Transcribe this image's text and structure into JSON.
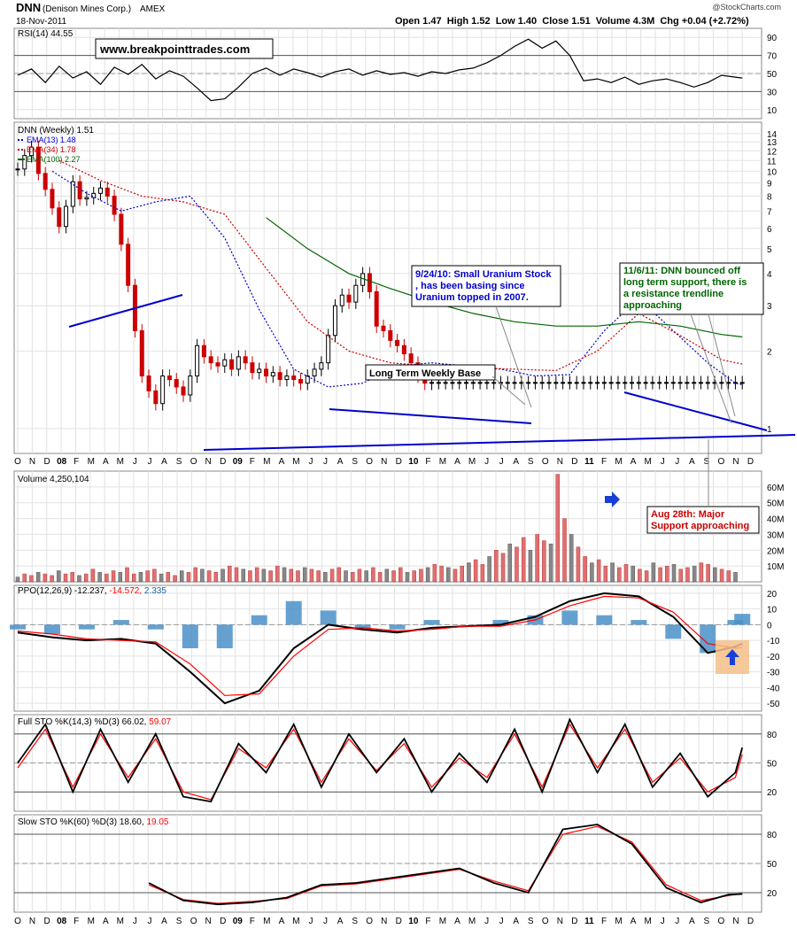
{
  "header": {
    "ticker": "DNN",
    "company": "(Denison Mines Corp.)",
    "exchange": "AMEX",
    "date": "18-Nov-2011",
    "copyright": "@StockCharts.com",
    "ohlc": "Open 1.47  High 1.52  Low 1.40  Close 1.51  Volume 4.3M  Chg +0.04 (+2.72%)",
    "up_color": "#000000",
    "down_color": "#cc0000"
  },
  "chart_data": [
    {
      "type": "line",
      "panel": "rsi",
      "label_prefix": "RSI(14)",
      "label_value": "44.55",
      "ylim": [
        0,
        100
      ],
      "y_ticks": [
        "90",
        "70",
        "50",
        "30",
        "10"
      ],
      "overbought": 70,
      "oversold": 30,
      "watermark": "www.breakpointtrades.com",
      "x": [
        0,
        4,
        8,
        12,
        16,
        20,
        24,
        28,
        32,
        36,
        40,
        44,
        48,
        52,
        56,
        60,
        64,
        68,
        72,
        76,
        80,
        84,
        88,
        92,
        96,
        100,
        104,
        108,
        112,
        116,
        120,
        124,
        128,
        132,
        136,
        140,
        144,
        148,
        152,
        156,
        160,
        164,
        168,
        172,
        176,
        180,
        184,
        188,
        192,
        196,
        200,
        204,
        208,
        210
      ],
      "values": [
        48,
        55,
        40,
        58,
        45,
        52,
        38,
        57,
        49,
        60,
        44,
        53,
        47,
        34,
        20,
        22,
        35,
        50,
        56,
        48,
        55,
        51,
        46,
        52,
        55,
        48,
        53,
        49,
        51,
        47,
        52,
        50,
        54,
        56,
        62,
        70,
        80,
        88,
        78,
        86,
        70,
        42,
        44,
        40,
        46,
        38,
        42,
        44,
        40,
        35,
        40,
        48,
        46,
        45
      ]
    },
    {
      "type": "candlestick",
      "panel": "price",
      "title": "DNN (Weekly) 1.51",
      "ylim": [
        0.8,
        15.5
      ],
      "scale": "log",
      "y_ticks": [
        "14",
        "13",
        "12",
        "11",
        "10",
        "9",
        "8",
        "7",
        "6",
        "5",
        "4",
        "3",
        "2",
        "1"
      ],
      "x_ticks": [
        "O",
        "N",
        "D",
        "08",
        "F",
        "M",
        "A",
        "M",
        "J",
        "J",
        "A",
        "S",
        "O",
        "N",
        "D",
        "09",
        "F",
        "M",
        "A",
        "M",
        "J",
        "J",
        "A",
        "S",
        "O",
        "N",
        "D",
        "10",
        "F",
        "M",
        "A",
        "M",
        "J",
        "J",
        "A",
        "S",
        "O",
        "N",
        "D",
        "11",
        "F",
        "M",
        "A",
        "M",
        "J",
        "J",
        "A",
        "S",
        "O",
        "N",
        "D"
      ],
      "x": [
        0,
        2,
        4,
        6,
        8,
        10,
        12,
        14,
        16,
        18,
        20,
        22,
        24,
        26,
        28,
        30,
        32,
        34,
        36,
        38,
        40,
        42,
        44,
        46,
        48,
        50,
        52,
        54,
        56,
        58,
        60,
        62,
        64,
        66,
        68,
        70,
        72,
        74,
        76,
        78,
        80,
        82,
        84,
        86,
        88,
        90,
        92,
        94,
        96,
        98,
        100,
        102,
        104,
        106,
        108,
        110,
        112,
        114,
        116,
        118,
        120,
        122,
        124,
        126,
        128,
        130,
        132,
        134,
        136,
        138,
        140,
        142,
        144,
        146,
        148,
        150,
        152,
        154,
        156,
        158,
        160,
        162,
        164,
        166,
        168,
        170,
        172,
        174,
        176,
        178,
        180,
        182,
        184,
        186,
        188,
        190,
        192,
        194,
        196,
        198,
        200,
        202,
        204,
        206,
        208,
        210
      ],
      "close": [
        10.2,
        11.5,
        12.4,
        9.8,
        8.5,
        7.2,
        6.1,
        7.3,
        9.1,
        7.8,
        7.9,
        8.2,
        8.6,
        8.0,
        6.8,
        5.2,
        3.6,
        2.4,
        1.6,
        1.4,
        1.25,
        1.6,
        1.55,
        1.45,
        1.35,
        1.6,
        2.1,
        1.9,
        1.8,
        1.75,
        1.85,
        1.7,
        1.9,
        1.8,
        1.65,
        1.7,
        1.6,
        1.65,
        1.55,
        1.6,
        1.55,
        1.5,
        1.6,
        1.7,
        1.8,
        2.3,
        3.0,
        3.3,
        3.1,
        3.6,
        4.0,
        3.4,
        2.5,
        2.4,
        2.2,
        2.1,
        1.95,
        1.8,
        1.6,
        1.5,
        1.51,
        1.51,
        1.51,
        1.51,
        1.51,
        1.51,
        1.51,
        1.51,
        1.51,
        1.51,
        1.51,
        1.51,
        1.51,
        1.51,
        1.51,
        1.51,
        1.51,
        1.51,
        1.51,
        1.51,
        1.51,
        1.51,
        1.51,
        1.51,
        1.51,
        1.51,
        1.51,
        1.51,
        1.51,
        1.51,
        1.51,
        1.51,
        1.51,
        1.51,
        1.51,
        1.51,
        1.51,
        1.51,
        1.51,
        1.51,
        1.51,
        1.51,
        1.51,
        1.51,
        1.51,
        1.51
      ],
      "series": [
        {
          "name": "EMA(13)",
          "label_value": "1.48",
          "color": "#0000cc",
          "x": [
            10,
            20,
            30,
            40,
            50,
            60,
            70,
            80,
            90,
            100,
            110,
            120,
            130,
            140,
            150,
            160,
            170,
            180,
            190,
            200,
            208,
            210
          ],
          "values": [
            10.0,
            8.2,
            7.0,
            7.6,
            8.0,
            5.5,
            2.9,
            1.7,
            1.45,
            1.5,
            1.75,
            1.8,
            1.75,
            1.7,
            1.6,
            1.62,
            2.4,
            3.2,
            2.4,
            1.8,
            1.5,
            1.48
          ]
        },
        {
          "name": "EMA(34)",
          "label_value": "1.78",
          "color": "#cc0000",
          "x": [
            12,
            24,
            36,
            48,
            60,
            72,
            84,
            96,
            108,
            120,
            132,
            144,
            156,
            168,
            180,
            192,
            204,
            210
          ],
          "values": [
            11.0,
            9.2,
            8.0,
            7.6,
            6.8,
            4.2,
            2.6,
            2.0,
            1.8,
            1.75,
            1.72,
            1.7,
            1.68,
            2.0,
            2.8,
            2.3,
            1.85,
            1.78
          ]
        },
        {
          "name": "EMA(100)",
          "label_value": "2.27",
          "color": "#006600",
          "x": [
            72,
            84,
            96,
            108,
            120,
            132,
            144,
            156,
            168,
            180,
            192,
            204,
            210
          ],
          "values": [
            6.6,
            5.0,
            4.0,
            3.5,
            3.1,
            2.8,
            2.6,
            2.5,
            2.5,
            2.6,
            2.5,
            2.32,
            2.27
          ]
        }
      ],
      "annotations": [
        "9/24/10: Small Uranium Stock , has been basing since Uranium topped in 2007.",
        "Long Term Weekly Base",
        "11/6/11: DNN bounced off long term support, there is a resistance trendline approaching"
      ]
    },
    {
      "type": "bar",
      "panel": "volume",
      "title": "Volume 4,250,104",
      "ylim": [
        0,
        70
      ],
      "y_ticks": [
        "60M",
        "50M",
        "40M",
        "30M",
        "20M",
        "10M"
      ],
      "values": [
        3,
        5,
        4,
        6,
        5,
        4,
        7,
        5,
        6,
        4,
        5,
        8,
        6,
        5,
        7,
        6,
        9,
        5,
        6,
        7,
        8,
        5,
        6,
        4,
        7,
        6,
        9,
        8,
        7,
        6,
        8,
        10,
        9,
        8,
        7,
        9,
        8,
        7,
        10,
        9,
        8,
        7,
        9,
        8,
        7,
        6,
        8,
        9,
        7,
        6,
        8,
        7,
        9,
        6,
        8,
        7,
        9,
        6,
        7,
        8,
        9,
        11,
        10,
        9,
        8,
        10,
        12,
        14,
        11,
        16,
        20,
        18,
        24,
        22,
        28,
        20,
        30,
        26,
        24,
        68,
        40,
        30,
        22,
        16,
        12,
        14,
        10,
        12,
        9,
        11,
        10,
        8,
        7,
        12,
        9,
        10,
        11,
        8,
        9,
        10,
        12,
        11,
        9,
        8,
        7,
        6
      ],
      "annotations": [
        "Aug 28th: Major Support approaching"
      ]
    },
    {
      "type": "line",
      "panel": "ppo",
      "title": "PPO(12,26,9)",
      "label_values": [
        "-12.237",
        "-14.572",
        "2.335"
      ],
      "ylim": [
        -55,
        25
      ],
      "y_ticks": [
        "20",
        "10",
        "0",
        "-10",
        "-20",
        "-30",
        "-40",
        "-50"
      ],
      "x": [
        0,
        10,
        20,
        30,
        40,
        50,
        60,
        70,
        80,
        90,
        100,
        110,
        120,
        130,
        140,
        150,
        160,
        170,
        180,
        190,
        200,
        208,
        210
      ],
      "series": [
        {
          "name": "PPO",
          "color": "#000000",
          "values": [
            -5,
            -8,
            -10,
            -9,
            -12,
            -30,
            -50,
            -42,
            -15,
            0,
            -3,
            -5,
            -2,
            -1,
            0,
            5,
            15,
            20,
            18,
            5,
            -18,
            -14,
            -12
          ]
        },
        {
          "name": "Signal",
          "color": "#ff0000",
          "values": [
            -4,
            -6,
            -9,
            -10,
            -11,
            -25,
            -45,
            -44,
            -20,
            -3,
            -2,
            -4,
            -3,
            -1,
            -1,
            3,
            12,
            18,
            17,
            8,
            -12,
            -15,
            -14.6
          ]
        }
      ],
      "histogram": [
        -1,
        -2,
        -1,
        1,
        -1,
        -5,
        -5,
        2,
        5,
        3,
        -1,
        -1,
        1,
        0,
        1,
        2,
        3,
        2,
        1,
        -3,
        -6,
        1,
        2.3
      ]
    },
    {
      "type": "line",
      "panel": "full_sto",
      "title": "Full STO %K(14,3) %D(3)",
      "label_values": [
        "66.02",
        "59.07"
      ],
      "ylim": [
        0,
        100
      ],
      "y_ticks": [
        "80",
        "50",
        "20"
      ],
      "x": [
        0,
        8,
        16,
        24,
        32,
        40,
        48,
        56,
        64,
        72,
        80,
        88,
        96,
        104,
        112,
        120,
        128,
        136,
        144,
        152,
        160,
        168,
        176,
        184,
        192,
        200,
        208,
        210
      ],
      "series": [
        {
          "name": "%K",
          "color": "#000000",
          "values": [
            50,
            90,
            20,
            85,
            30,
            80,
            15,
            10,
            70,
            40,
            90,
            25,
            80,
            40,
            75,
            20,
            60,
            30,
            85,
            20,
            95,
            40,
            90,
            25,
            60,
            15,
            40,
            66
          ]
        },
        {
          "name": "%D",
          "color": "#ff0000",
          "values": [
            45,
            85,
            25,
            80,
            35,
            75,
            20,
            12,
            65,
            45,
            85,
            30,
            75,
            42,
            70,
            25,
            55,
            35,
            80,
            25,
            90,
            45,
            85,
            30,
            55,
            20,
            35,
            59
          ]
        }
      ]
    },
    {
      "type": "line",
      "panel": "slow_sto",
      "title": "Slow STO %K(60) %D(3)",
      "label_values": [
        "18.60",
        "19.05"
      ],
      "ylim": [
        0,
        100
      ],
      "y_ticks": [
        "80",
        "50",
        "20"
      ],
      "x": [
        38,
        48,
        58,
        68,
        78,
        88,
        98,
        108,
        118,
        128,
        138,
        148,
        158,
        168,
        178,
        188,
        198,
        206,
        210
      ],
      "series": [
        {
          "name": "%K",
          "color": "#000000",
          "values": [
            30,
            12,
            8,
            10,
            15,
            28,
            30,
            35,
            40,
            45,
            30,
            20,
            85,
            90,
            70,
            25,
            10,
            18,
            18.6
          ]
        },
        {
          "name": "%D",
          "color": "#ff0000",
          "values": [
            28,
            13,
            9,
            11,
            14,
            27,
            29,
            34,
            39,
            44,
            32,
            22,
            80,
            88,
            72,
            28,
            12,
            17,
            19.05
          ]
        }
      ]
    }
  ]
}
